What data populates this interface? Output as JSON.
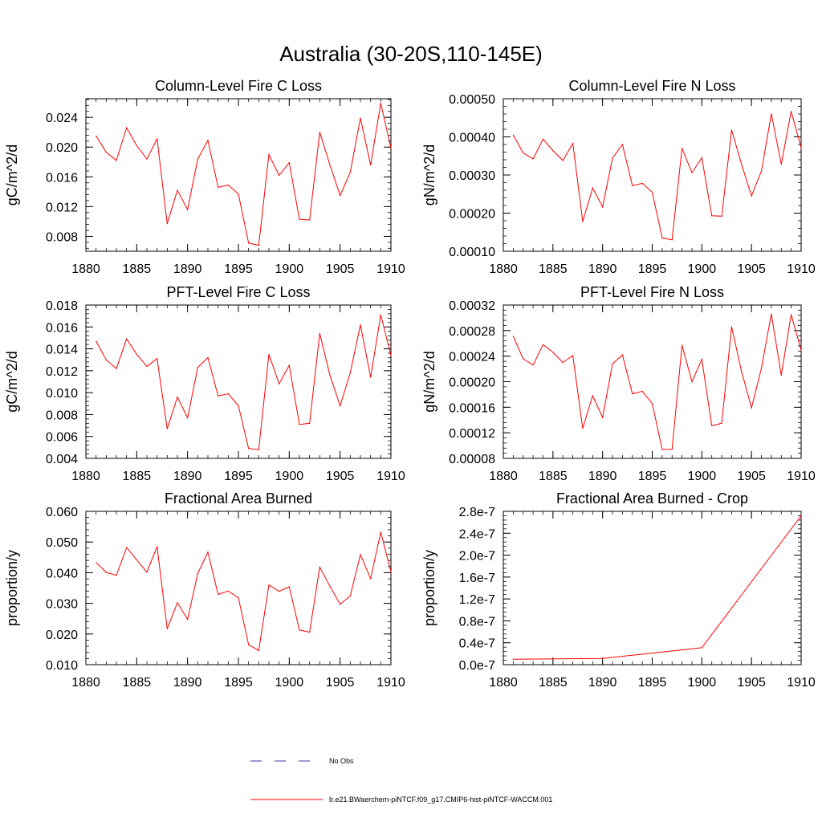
{
  "page_title": "Australia (30-20S,110-145E)",
  "colors": {
    "model": "#ff0000",
    "obs": "#3333aa",
    "axis": "#000000"
  },
  "legend": {
    "obs_label": "No Obs",
    "model_label": "b.e21.BWaerchem-piNTCF.f09_g17.CMIP6-hist-piNTCF-WACCM.001"
  },
  "chart_data": [
    {
      "type": "line",
      "title": "Column-Level Fire C Loss",
      "ylabel": "gC/m^2/d",
      "xlim": [
        1880,
        1910
      ],
      "ylim": [
        0.006,
        0.0265
      ],
      "xticks": [
        1880,
        1885,
        1890,
        1895,
        1900,
        1905,
        1910
      ],
      "xtick_labels": [
        "1880",
        "1885",
        "1890",
        "1895",
        "1900",
        "1905",
        "1910"
      ],
      "yticks": [
        0.008,
        0.012,
        0.016,
        0.02,
        0.024
      ],
      "ytick_labels": [
        "0.008",
        "0.012",
        "0.016",
        "0.020",
        "0.024"
      ],
      "x": [
        1881,
        1882,
        1883,
        1884,
        1885,
        1886,
        1887,
        1888,
        1889,
        1890,
        1891,
        1892,
        1893,
        1894,
        1895,
        1896,
        1897,
        1898,
        1899,
        1900,
        1901,
        1902,
        1903,
        1904,
        1905,
        1906,
        1907,
        1908,
        1909,
        1910
      ],
      "series": [
        {
          "values": [
            0.0215,
            0.0193,
            0.0182,
            0.0226,
            0.0202,
            0.0184,
            0.0211,
            0.0097,
            0.0142,
            0.0116,
            0.0184,
            0.0209,
            0.0146,
            0.0149,
            0.0137,
            0.0071,
            0.0068,
            0.019,
            0.0162,
            0.0179,
            0.0103,
            0.0102,
            0.022,
            0.0176,
            0.0135,
            0.0166,
            0.0239,
            0.0176,
            0.0259,
            0.0199
          ]
        }
      ]
    },
    {
      "type": "line",
      "title": "Column-Level Fire N Loss",
      "ylabel": "gN/m^2/d",
      "xlim": [
        1880,
        1910
      ],
      "ylim": [
        0.0001,
        0.0005
      ],
      "xticks": [
        1880,
        1885,
        1890,
        1895,
        1900,
        1905,
        1910
      ],
      "xtick_labels": [
        "1880",
        "1885",
        "1890",
        "1895",
        "1900",
        "1905",
        "1910"
      ],
      "yticks": [
        0.0001,
        0.0002,
        0.0003,
        0.0004,
        0.0005
      ],
      "ytick_labels": [
        "0.00010",
        "0.00020",
        "0.00030",
        "0.00040",
        "0.00050"
      ],
      "x": [
        1881,
        1882,
        1883,
        1884,
        1885,
        1886,
        1887,
        1888,
        1889,
        1890,
        1891,
        1892,
        1893,
        1894,
        1895,
        1896,
        1897,
        1898,
        1899,
        1900,
        1901,
        1902,
        1903,
        1904,
        1905,
        1906,
        1907,
        1908,
        1909,
        1910
      ],
      "series": [
        {
          "values": [
            0.000405,
            0.000358,
            0.000342,
            0.000394,
            0.000364,
            0.000338,
            0.000383,
            0.000178,
            0.000266,
            0.000216,
            0.000344,
            0.00038,
            0.000272,
            0.000278,
            0.000255,
            0.000135,
            0.00013,
            0.00037,
            0.000306,
            0.000345,
            0.000193,
            0.000192,
            0.000418,
            0.000328,
            0.000245,
            0.00031,
            0.00046,
            0.000328,
            0.000467,
            0.000372
          ]
        }
      ]
    },
    {
      "type": "line",
      "title": "PFT-Level Fire C Loss",
      "ylabel": "gC/m^2/d",
      "xlim": [
        1880,
        1910
      ],
      "ylim": [
        0.004,
        0.018
      ],
      "xticks": [
        1880,
        1885,
        1890,
        1895,
        1900,
        1905,
        1910
      ],
      "xtick_labels": [
        "1880",
        "1885",
        "1890",
        "1895",
        "1900",
        "1905",
        "1910"
      ],
      "yticks": [
        0.004,
        0.006,
        0.008,
        0.01,
        0.012,
        0.014,
        0.016,
        0.018
      ],
      "ytick_labels": [
        "0.004",
        "0.006",
        "0.008",
        "0.010",
        "0.012",
        "0.014",
        "0.016",
        "0.018"
      ],
      "x": [
        1881,
        1882,
        1883,
        1884,
        1885,
        1886,
        1887,
        1888,
        1889,
        1890,
        1891,
        1892,
        1893,
        1894,
        1895,
        1896,
        1897,
        1898,
        1899,
        1900,
        1901,
        1902,
        1903,
        1904,
        1905,
        1906,
        1907,
        1908,
        1909,
        1910
      ],
      "series": [
        {
          "values": [
            0.0147,
            0.013,
            0.0122,
            0.0149,
            0.0135,
            0.0124,
            0.0131,
            0.0067,
            0.0096,
            0.0077,
            0.0123,
            0.0132,
            0.0097,
            0.0099,
            0.0088,
            0.0049,
            0.0048,
            0.0135,
            0.0108,
            0.0125,
            0.0071,
            0.0072,
            0.0154,
            0.0116,
            0.0088,
            0.0118,
            0.0162,
            0.0114,
            0.0171,
            0.0134
          ]
        }
      ]
    },
    {
      "type": "line",
      "title": "PFT-Level Fire N Loss",
      "ylabel": "gN/m^2/d",
      "xlim": [
        1880,
        1910
      ],
      "ylim": [
        8e-05,
        0.00032
      ],
      "xticks": [
        1880,
        1885,
        1890,
        1895,
        1900,
        1905,
        1910
      ],
      "xtick_labels": [
        "1880",
        "1885",
        "1890",
        "1895",
        "1900",
        "1905",
        "1910"
      ],
      "yticks": [
        8e-05,
        0.00012,
        0.00016,
        0.0002,
        0.00024,
        0.00028,
        0.00032
      ],
      "ytick_labels": [
        "0.00008",
        "0.00012",
        "0.00016",
        "0.00020",
        "0.00024",
        "0.00028",
        "0.00032"
      ],
      "x": [
        1881,
        1882,
        1883,
        1884,
        1885,
        1886,
        1887,
        1888,
        1889,
        1890,
        1891,
        1892,
        1893,
        1894,
        1895,
        1896,
        1897,
        1898,
        1899,
        1900,
        1901,
        1902,
        1903,
        1904,
        1905,
        1906,
        1907,
        1908,
        1909,
        1910
      ],
      "series": [
        {
          "values": [
            0.000271,
            0.000236,
            0.000226,
            0.000258,
            0.000246,
            0.00023,
            0.000241,
            0.000127,
            0.000178,
            0.000144,
            0.000228,
            0.000242,
            0.000181,
            0.000185,
            0.000166,
            9.4e-05,
            9.4e-05,
            0.000257,
            0.0002,
            0.000235,
            0.000131,
            0.000135,
            0.000286,
            0.000216,
            0.000159,
            0.000221,
            0.000306,
            0.00021,
            0.000305,
            0.000249
          ]
        }
      ]
    },
    {
      "type": "line",
      "title": "Fractional Area Burned",
      "ylabel": "proportion/y",
      "xlim": [
        1880,
        1910
      ],
      "ylim": [
        0.01,
        0.06
      ],
      "xticks": [
        1880,
        1885,
        1890,
        1895,
        1900,
        1905,
        1910
      ],
      "xtick_labels": [
        "1880",
        "1885",
        "1890",
        "1895",
        "1900",
        "1905",
        "1910"
      ],
      "yticks": [
        0.01,
        0.02,
        0.03,
        0.04,
        0.05,
        0.06
      ],
      "ytick_labels": [
        "0.010",
        "0.020",
        "0.030",
        "0.040",
        "0.050",
        "0.060"
      ],
      "x": [
        1881,
        1882,
        1883,
        1884,
        1885,
        1886,
        1887,
        1888,
        1889,
        1890,
        1891,
        1892,
        1893,
        1894,
        1895,
        1896,
        1897,
        1898,
        1899,
        1900,
        1901,
        1902,
        1903,
        1904,
        1905,
        1906,
        1907,
        1908,
        1909,
        1910
      ],
      "series": [
        {
          "values": [
            0.0433,
            0.0401,
            0.0391,
            0.0482,
            0.0442,
            0.0402,
            0.0485,
            0.0217,
            0.0302,
            0.0248,
            0.0397,
            0.0467,
            0.0329,
            0.034,
            0.0318,
            0.0165,
            0.0146,
            0.036,
            0.0339,
            0.0354,
            0.0213,
            0.0206,
            0.0418,
            0.0356,
            0.0297,
            0.0324,
            0.0459,
            0.0381,
            0.0532,
            0.0403
          ]
        }
      ]
    },
    {
      "type": "line",
      "title": "Fractional Area Burned - Crop",
      "ylabel": "proportion/y",
      "xlim": [
        1880,
        1910
      ],
      "ylim": [
        0,
        2.8e-07
      ],
      "xticks": [
        1880,
        1885,
        1890,
        1895,
        1900,
        1905,
        1910
      ],
      "xtick_labels": [
        "1880",
        "1885",
        "1890",
        "1895",
        "1900",
        "1905",
        "1910"
      ],
      "yticks": [
        0,
        4e-08,
        8e-08,
        1.2e-07,
        1.6e-07,
        2e-07,
        2.4e-07,
        2.8e-07
      ],
      "ytick_labels": [
        "0.0e-7",
        "0.4e-7",
        "0.8e-7",
        "1.2e-7",
        "1.6e-7",
        "2.0e-7",
        "2.4e-7",
        "2.8e-7"
      ],
      "x": [
        1881,
        1890,
        1900,
        1910
      ],
      "series": [
        {
          "values": [
            1e-08,
            1.15e-08,
            3.1e-08,
            2.72e-07
          ]
        }
      ]
    }
  ]
}
